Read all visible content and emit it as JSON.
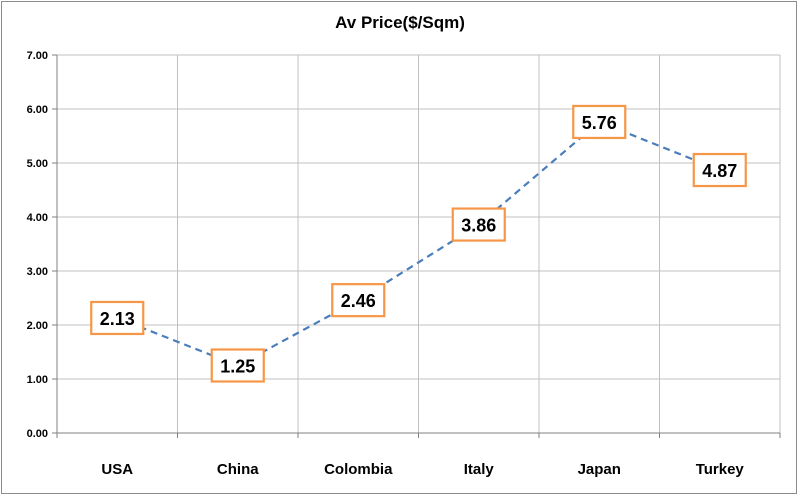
{
  "chart_data": {
    "type": "line",
    "title": "Av Price($/Sqm)",
    "categories": [
      "USA",
      "China",
      "Colombia",
      "Italy",
      "Japan",
      "Turkey"
    ],
    "values": [
      2.13,
      1.25,
      2.46,
      3.86,
      5.76,
      4.87
    ],
    "data_labels": [
      "2.13",
      "1.25",
      "2.46",
      "3.86",
      "5.76",
      "4.87"
    ],
    "yticks": [
      "0.00",
      "1.00",
      "2.00",
      "3.00",
      "4.00",
      "5.00",
      "6.00",
      "7.00"
    ],
    "ylim": [
      0,
      7
    ],
    "grid": true,
    "line_color": "#4a7ebb",
    "line_style": "dashed",
    "label_border_color": "#f79646",
    "gridline_color": "#c0c0c0",
    "axis_color": "#808080"
  }
}
